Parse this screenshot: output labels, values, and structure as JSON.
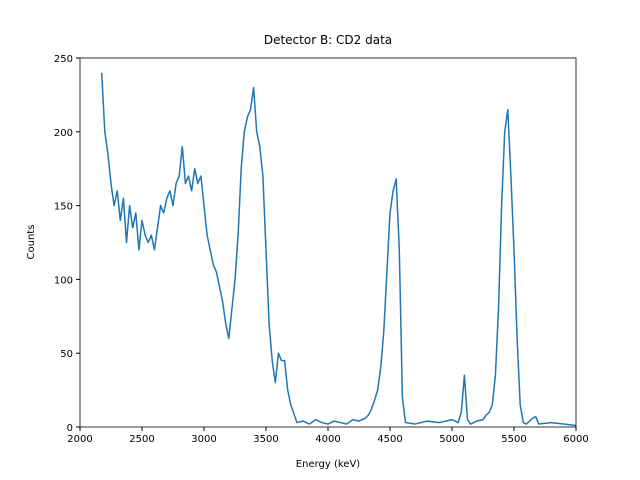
{
  "chart_data": {
    "type": "line",
    "title": "Detector B: CD2 data",
    "x_label": "Energy (keV)",
    "y_label": "Counts",
    "x": [
      2175,
      2200,
      2225,
      2250,
      2275,
      2300,
      2325,
      2350,
      2375,
      2400,
      2425,
      2450,
      2475,
      2500,
      2525,
      2550,
      2575,
      2600,
      2625,
      2650,
      2675,
      2700,
      2725,
      2750,
      2775,
      2800,
      2825,
      2850,
      2875,
      2900,
      2925,
      2950,
      2975,
      3000,
      3025,
      3050,
      3075,
      3100,
      3125,
      3150,
      3175,
      3200,
      3225,
      3250,
      3275,
      3300,
      3325,
      3350,
      3375,
      3400,
      3425,
      3450,
      3475,
      3500,
      3525,
      3550,
      3575,
      3600,
      3625,
      3650,
      3675,
      3700,
      3750,
      3800,
      3850,
      3900,
      3950,
      4000,
      4050,
      4100,
      4150,
      4200,
      4250,
      4300,
      4325,
      4350,
      4375,
      4400,
      4425,
      4450,
      4475,
      4500,
      4525,
      4550,
      4575,
      4600,
      4625,
      4700,
      4800,
      4900,
      5000,
      5050,
      5075,
      5100,
      5125,
      5150,
      5200,
      5250,
      5275,
      5300,
      5325,
      5350,
      5375,
      5400,
      5425,
      5450,
      5475,
      5500,
      5525,
      5550,
      5575,
      5600,
      5650,
      5675,
      5700,
      5800,
      5900,
      6000
    ],
    "series": [
      {
        "color": "#1f77b4",
        "values": [
          240,
          200,
          185,
          165,
          150,
          160,
          140,
          155,
          125,
          150,
          135,
          145,
          120,
          140,
          130,
          125,
          130,
          120,
          135,
          150,
          145,
          155,
          160,
          150,
          165,
          170,
          190,
          165,
          170,
          160,
          175,
          165,
          170,
          150,
          130,
          120,
          110,
          105,
          95,
          85,
          70,
          60,
          80,
          100,
          130,
          175,
          200,
          210,
          215,
          230,
          200,
          190,
          170,
          120,
          70,
          45,
          30,
          50,
          45,
          45,
          25,
          15,
          3,
          4,
          2,
          5,
          3,
          2,
          4,
          3,
          2,
          5,
          4,
          6,
          8,
          12,
          18,
          25,
          40,
          65,
          105,
          145,
          160,
          168,
          120,
          20,
          3,
          2,
          4,
          3,
          5,
          3,
          10,
          35,
          5,
          2,
          4,
          5,
          8,
          10,
          15,
          35,
          80,
          150,
          200,
          215,
          170,
          120,
          60,
          15,
          3,
          2,
          6,
          7,
          2,
          3,
          2,
          1
        ]
      }
    ],
    "xlim": [
      2000,
      6000
    ],
    "ylim": [
      0,
      250
    ],
    "xticks": [
      2000,
      2500,
      3000,
      3500,
      4000,
      4500,
      5000,
      5500,
      6000
    ],
    "yticks": [
      0,
      50,
      100,
      150,
      200,
      250
    ]
  }
}
